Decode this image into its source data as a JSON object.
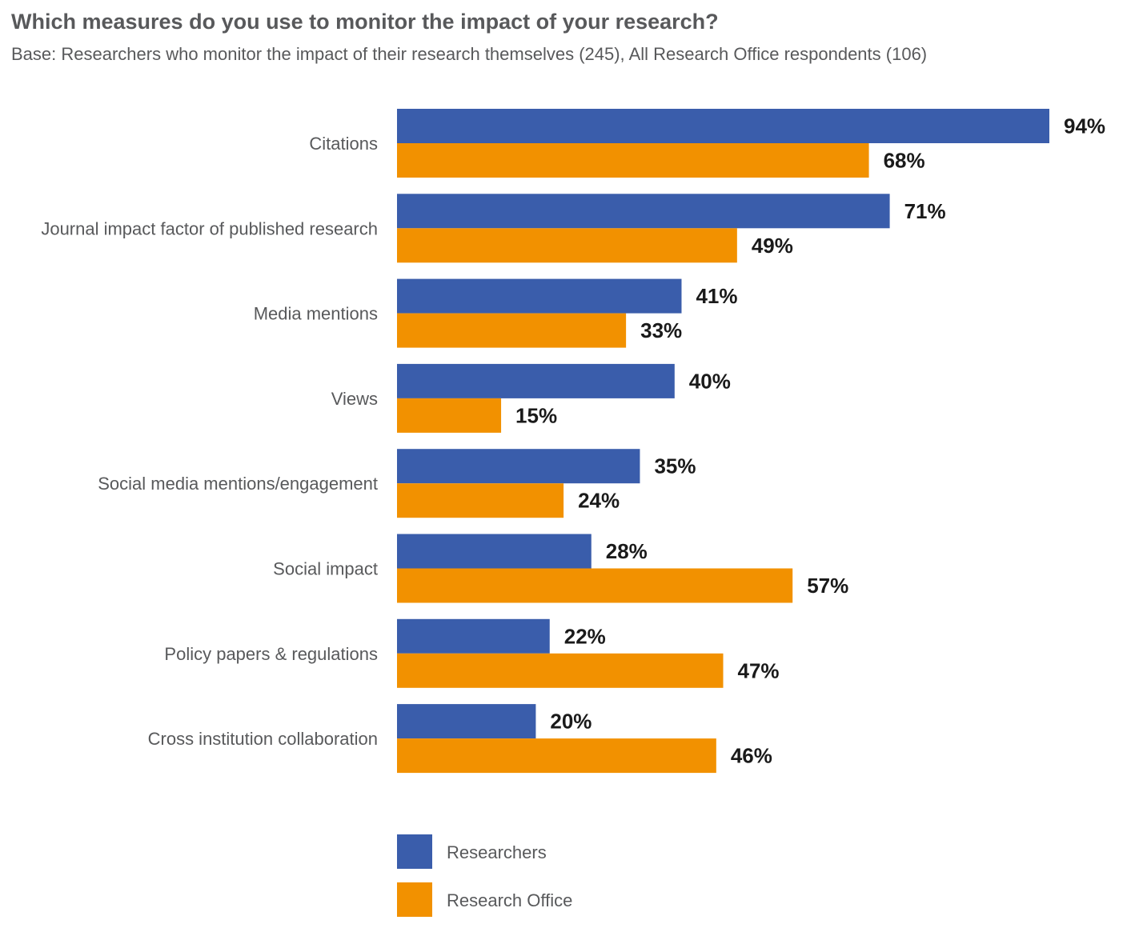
{
  "title": "Which measures do you use to monitor the impact of your research?",
  "subtitle": "Base: Researchers who monitor the impact of their research themselves (245), All Research Office respondents (106)",
  "colors": {
    "researchers": "#3a5dab",
    "research_office": "#f29100"
  },
  "chart_data": {
    "type": "bar",
    "orientation": "horizontal",
    "title": "Which measures do you use to monitor the impact of your research?",
    "categories": [
      "Citations",
      "Journal impact factor of published research",
      "Media mentions",
      "Views",
      "Social media mentions/engagement",
      "Social impact",
      "Policy papers & regulations",
      "Cross institution collaboration"
    ],
    "series": [
      {
        "name": "Researchers",
        "values": [
          94,
          71,
          41,
          40,
          35,
          28,
          22,
          20
        ],
        "labels": [
          "94%",
          "71%",
          "41%",
          "40%",
          "35%",
          "28%",
          "22%",
          "20%"
        ]
      },
      {
        "name": "Research Office",
        "values": [
          68,
          49,
          33,
          15,
          24,
          57,
          47,
          46
        ],
        "labels": [
          "68%",
          "49%",
          "33%",
          "15%",
          "24%",
          "57%",
          "47%",
          "46%"
        ]
      }
    ],
    "xlim": [
      0,
      100
    ],
    "grid": false,
    "legend_position": "bottom-left"
  }
}
